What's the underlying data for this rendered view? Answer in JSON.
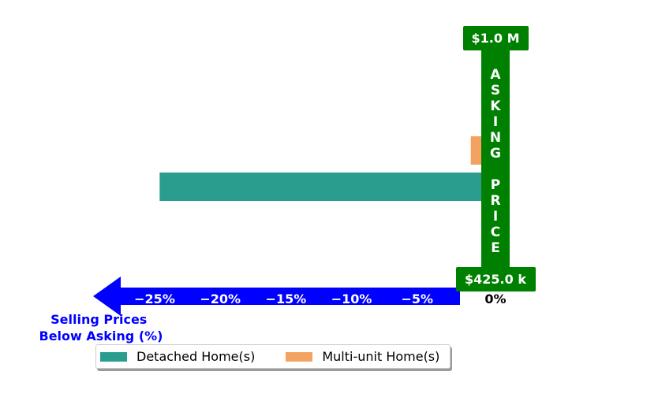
{
  "chart_data": {
    "type": "bar",
    "orientation": "horizontal",
    "series": [
      {
        "name": "Detached Home(s)",
        "value": -24.5,
        "color": "#2a9d8f"
      },
      {
        "name": "Multi-unit Home(s)",
        "value": -0.8,
        "color": "#f4a261"
      }
    ],
    "xlim": [
      -26.5,
      1.3
    ],
    "xticks": [
      -25,
      -20,
      -15,
      -10,
      -5
    ],
    "xtick_labels": [
      "−25%",
      "−20%",
      "−15%",
      "−10%",
      "−5%"
    ],
    "zero_label": "0%",
    "xlabel": "Selling Prices\nBelow Asking (%)",
    "asking_price_label": "ASKING PRICE",
    "asking_price_max": "$1.0 M",
    "asking_price_min": "$425.0 k",
    "legend": "bottom-left",
    "grid": false,
    "colors": {
      "arrow": "#0000ff",
      "asking": "#008000",
      "tick_text": "#ffffff",
      "xlabel": "#0000ff"
    }
  }
}
